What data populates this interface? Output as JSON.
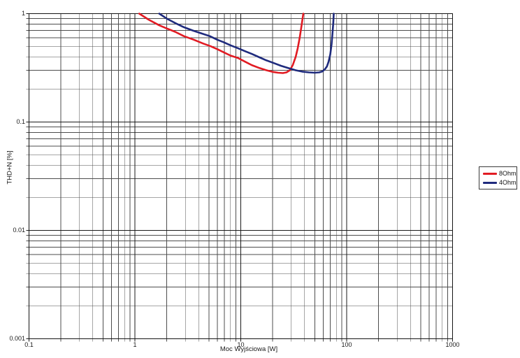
{
  "colors": {
    "background": "#ffffff",
    "frame": "#141414",
    "grid_major": "#1a1a1a",
    "grid_minor": "#4d4d4d",
    "text": "#1a1a1a"
  },
  "chart_data": {
    "type": "line",
    "title": "",
    "xlabel": "Moc Wyjściowa [W]",
    "ylabel": "THD+N [%]",
    "x_scale": "log",
    "y_scale": "log",
    "xlim": [
      0.1,
      1000
    ],
    "ylim": [
      0.001,
      1
    ],
    "x_tick_values": [
      0.1,
      1,
      10,
      100,
      1000
    ],
    "x_tick_labels": [
      "0.1",
      "1",
      "10",
      "100",
      "1000"
    ],
    "y_tick_values": [
      1,
      0.1,
      0.01,
      0.001
    ],
    "y_tick_labels": [
      "1",
      "0.1",
      "0.01",
      "0.001"
    ],
    "grid": {
      "major": true,
      "minor": true,
      "minor_subdivisions": [
        2,
        3,
        4,
        5,
        6,
        7,
        8,
        9
      ]
    },
    "legend_position": "right-outside",
    "series": [
      {
        "name": "8Ohm",
        "color": "#e11b23",
        "points": [
          [
            1.1,
            1.0
          ],
          [
            1.35,
            0.88
          ],
          [
            1.7,
            0.78
          ],
          [
            2.0,
            0.73
          ],
          [
            2.4,
            0.68
          ],
          [
            2.9,
            0.62
          ],
          [
            3.6,
            0.575
          ],
          [
            4.4,
            0.53
          ],
          [
            5.2,
            0.5
          ],
          [
            6.0,
            0.47
          ],
          [
            6.9,
            0.44
          ],
          [
            8.0,
            0.41
          ],
          [
            9.4,
            0.39
          ],
          [
            11,
            0.36
          ],
          [
            12.7,
            0.335
          ],
          [
            15,
            0.315
          ],
          [
            17.5,
            0.3
          ],
          [
            20,
            0.29
          ],
          [
            22.5,
            0.285
          ],
          [
            25,
            0.283
          ],
          [
            27,
            0.287
          ],
          [
            29,
            0.3
          ],
          [
            31,
            0.335
          ],
          [
            33,
            0.4
          ],
          [
            34.5,
            0.48
          ],
          [
            36,
            0.6
          ],
          [
            37.3,
            0.75
          ],
          [
            38.3,
            0.9
          ],
          [
            39,
            1.0
          ]
        ]
      },
      {
        "name": "4Ohm",
        "color": "#1f2b7d",
        "points": [
          [
            1.7,
            1.0
          ],
          [
            2.0,
            0.9
          ],
          [
            2.4,
            0.82
          ],
          [
            2.9,
            0.75
          ],
          [
            3.5,
            0.7
          ],
          [
            4.2,
            0.66
          ],
          [
            5.1,
            0.62
          ],
          [
            6.0,
            0.575
          ],
          [
            6.9,
            0.545
          ],
          [
            8.0,
            0.51
          ],
          [
            9.4,
            0.48
          ],
          [
            11,
            0.45
          ],
          [
            12.7,
            0.425
          ],
          [
            15,
            0.395
          ],
          [
            17.5,
            0.37
          ],
          [
            20.5,
            0.35
          ],
          [
            24,
            0.33
          ],
          [
            28,
            0.315
          ],
          [
            33,
            0.3
          ],
          [
            38,
            0.292
          ],
          [
            44,
            0.287
          ],
          [
            50,
            0.285
          ],
          [
            55,
            0.287
          ],
          [
            59,
            0.293
          ],
          [
            62,
            0.305
          ],
          [
            65,
            0.325
          ],
          [
            67.5,
            0.36
          ],
          [
            70,
            0.42
          ],
          [
            72,
            0.52
          ],
          [
            73.5,
            0.66
          ],
          [
            74.8,
            0.83
          ],
          [
            75.5,
            1.0
          ]
        ]
      }
    ]
  }
}
